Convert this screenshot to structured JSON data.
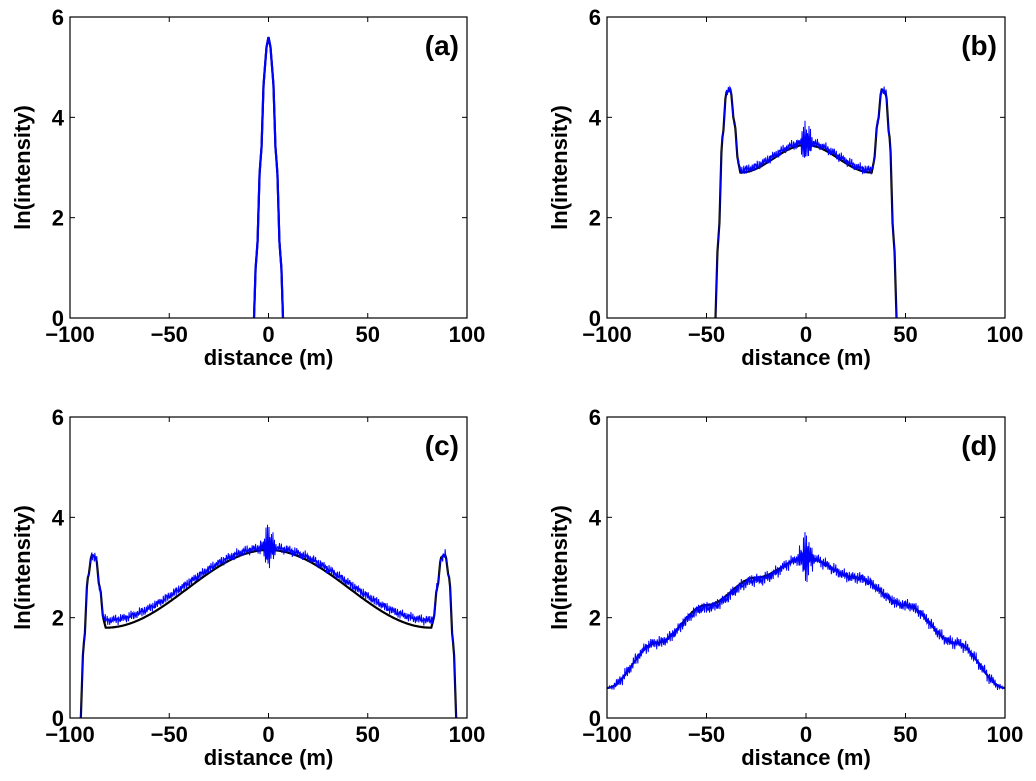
{
  "chart_data": [
    {
      "type": "line",
      "panel_label": "(a)",
      "xlabel": "distance (m)",
      "ylabel": "ln(intensity)",
      "xlim": [
        -100,
        100
      ],
      "ylim": [
        0,
        6
      ],
      "xticks": [
        -100,
        -50,
        0,
        50,
        100
      ],
      "yticks": [
        0,
        2,
        4,
        6
      ],
      "series": [
        {
          "color": "#000000",
          "style": "smooth",
          "x": [
            -8,
            -6,
            -4,
            -2,
            -1,
            0,
            1,
            2,
            4,
            6,
            8
          ],
          "y": [
            -0.5,
            1.25,
            3.15,
            4.9,
            5.4,
            5.6,
            5.4,
            4.9,
            3.15,
            1.25,
            -0.5
          ]
        },
        {
          "color": "#0000ff",
          "style": "smooth",
          "x": [
            -8,
            -6,
            -4,
            -2,
            -1,
            0,
            1,
            2,
            4,
            6,
            8
          ],
          "y": [
            -0.5,
            1.25,
            3.15,
            4.9,
            5.4,
            5.6,
            5.4,
            4.9,
            3.15,
            1.25,
            -0.5
          ]
        }
      ]
    },
    {
      "type": "line",
      "panel_label": "(b)",
      "xlabel": "distance (m)",
      "ylabel": "ln(intensity)",
      "xlim": [
        -100,
        100
      ],
      "ylim": [
        0,
        6
      ],
      "xticks": [
        -100,
        -50,
        0,
        50,
        100
      ],
      "yticks": [
        0,
        2,
        4,
        6
      ],
      "series": [
        {
          "color": "#000000",
          "style": "smooth",
          "x": [
            -46,
            -44,
            -42,
            -40,
            -38,
            -36,
            -34,
            -33,
            0,
            33,
            34,
            36,
            38,
            40,
            42,
            44,
            46
          ],
          "y": [
            -0.3,
            1.6,
            3.6,
            4.5,
            4.55,
            3.9,
            3.1,
            2.9,
            3.45,
            2.9,
            3.1,
            3.9,
            4.55,
            4.5,
            3.6,
            1.6,
            -0.3
          ]
        },
        {
          "color": "#0000ff",
          "style": "noisy",
          "noise_amp": 0.12,
          "center_amp": 0.4,
          "x": [
            -46,
            -44,
            -42,
            -40,
            -38,
            -36,
            -34,
            -33,
            0,
            33,
            34,
            36,
            38,
            40,
            42,
            44,
            46
          ],
          "y": [
            -0.3,
            1.6,
            3.6,
            4.5,
            4.55,
            3.9,
            3.1,
            2.95,
            3.5,
            2.95,
            3.1,
            3.9,
            4.55,
            4.5,
            3.6,
            1.6,
            -0.3
          ]
        }
      ]
    },
    {
      "type": "line",
      "panel_label": "(c)",
      "xlabel": "distance (m)",
      "ylabel": "ln(intensity)",
      "xlim": [
        -100,
        100
      ],
      "ylim": [
        0,
        6
      ],
      "xticks": [
        -100,
        -50,
        0,
        50,
        100
      ],
      "yticks": [
        0,
        2,
        4,
        6
      ],
      "series": [
        {
          "color": "#000000",
          "style": "smooth",
          "x": [
            -95,
            -93,
            -91,
            -89,
            -87,
            -85,
            -83,
            -82,
            0,
            82,
            83,
            85,
            87,
            89,
            91,
            93,
            95
          ],
          "y": [
            -0.2,
            1.5,
            2.8,
            3.25,
            3.2,
            2.6,
            1.95,
            1.8,
            3.35,
            1.8,
            1.95,
            2.6,
            3.2,
            3.25,
            2.8,
            1.5,
            -0.2
          ]
        },
        {
          "color": "#0000ff",
          "style": "noisy",
          "noise_amp": 0.12,
          "center_amp": 0.45,
          "x": [
            -95,
            -93,
            -91,
            -89,
            -87,
            -85,
            -83,
            -82,
            0,
            82,
            83,
            85,
            87,
            89,
            91,
            93,
            95
          ],
          "y": [
            -0.2,
            1.5,
            2.8,
            3.25,
            3.2,
            2.6,
            2.0,
            1.95,
            3.4,
            1.95,
            2.0,
            2.6,
            3.2,
            3.25,
            2.8,
            1.5,
            -0.2
          ]
        }
      ]
    },
    {
      "type": "line",
      "panel_label": "(d)",
      "xlabel": "distance (m)",
      "ylabel": "ln(intensity)",
      "xlim": [
        -100,
        100
      ],
      "ylim": [
        0,
        6
      ],
      "xticks": [
        -100,
        -50,
        0,
        50,
        100
      ],
      "yticks": [
        0,
        2,
        4,
        6
      ],
      "series": [
        {
          "color": "#000000",
          "style": "smooth",
          "x": [
            -100,
            -75,
            -50,
            -25,
            0,
            25,
            50,
            75,
            100
          ],
          "y": [
            0.6,
            1.5,
            2.25,
            2.8,
            3.2,
            2.8,
            2.25,
            1.5,
            0.6
          ]
        },
        {
          "color": "#0000ff",
          "style": "noisy",
          "noise_amp": 0.15,
          "center_amp": 0.5,
          "x": [
            -100,
            -75,
            -50,
            -25,
            0,
            25,
            50,
            75,
            100
          ],
          "y": [
            0.6,
            1.5,
            2.2,
            2.75,
            3.2,
            2.8,
            2.25,
            1.5,
            0.6
          ]
        }
      ]
    }
  ]
}
